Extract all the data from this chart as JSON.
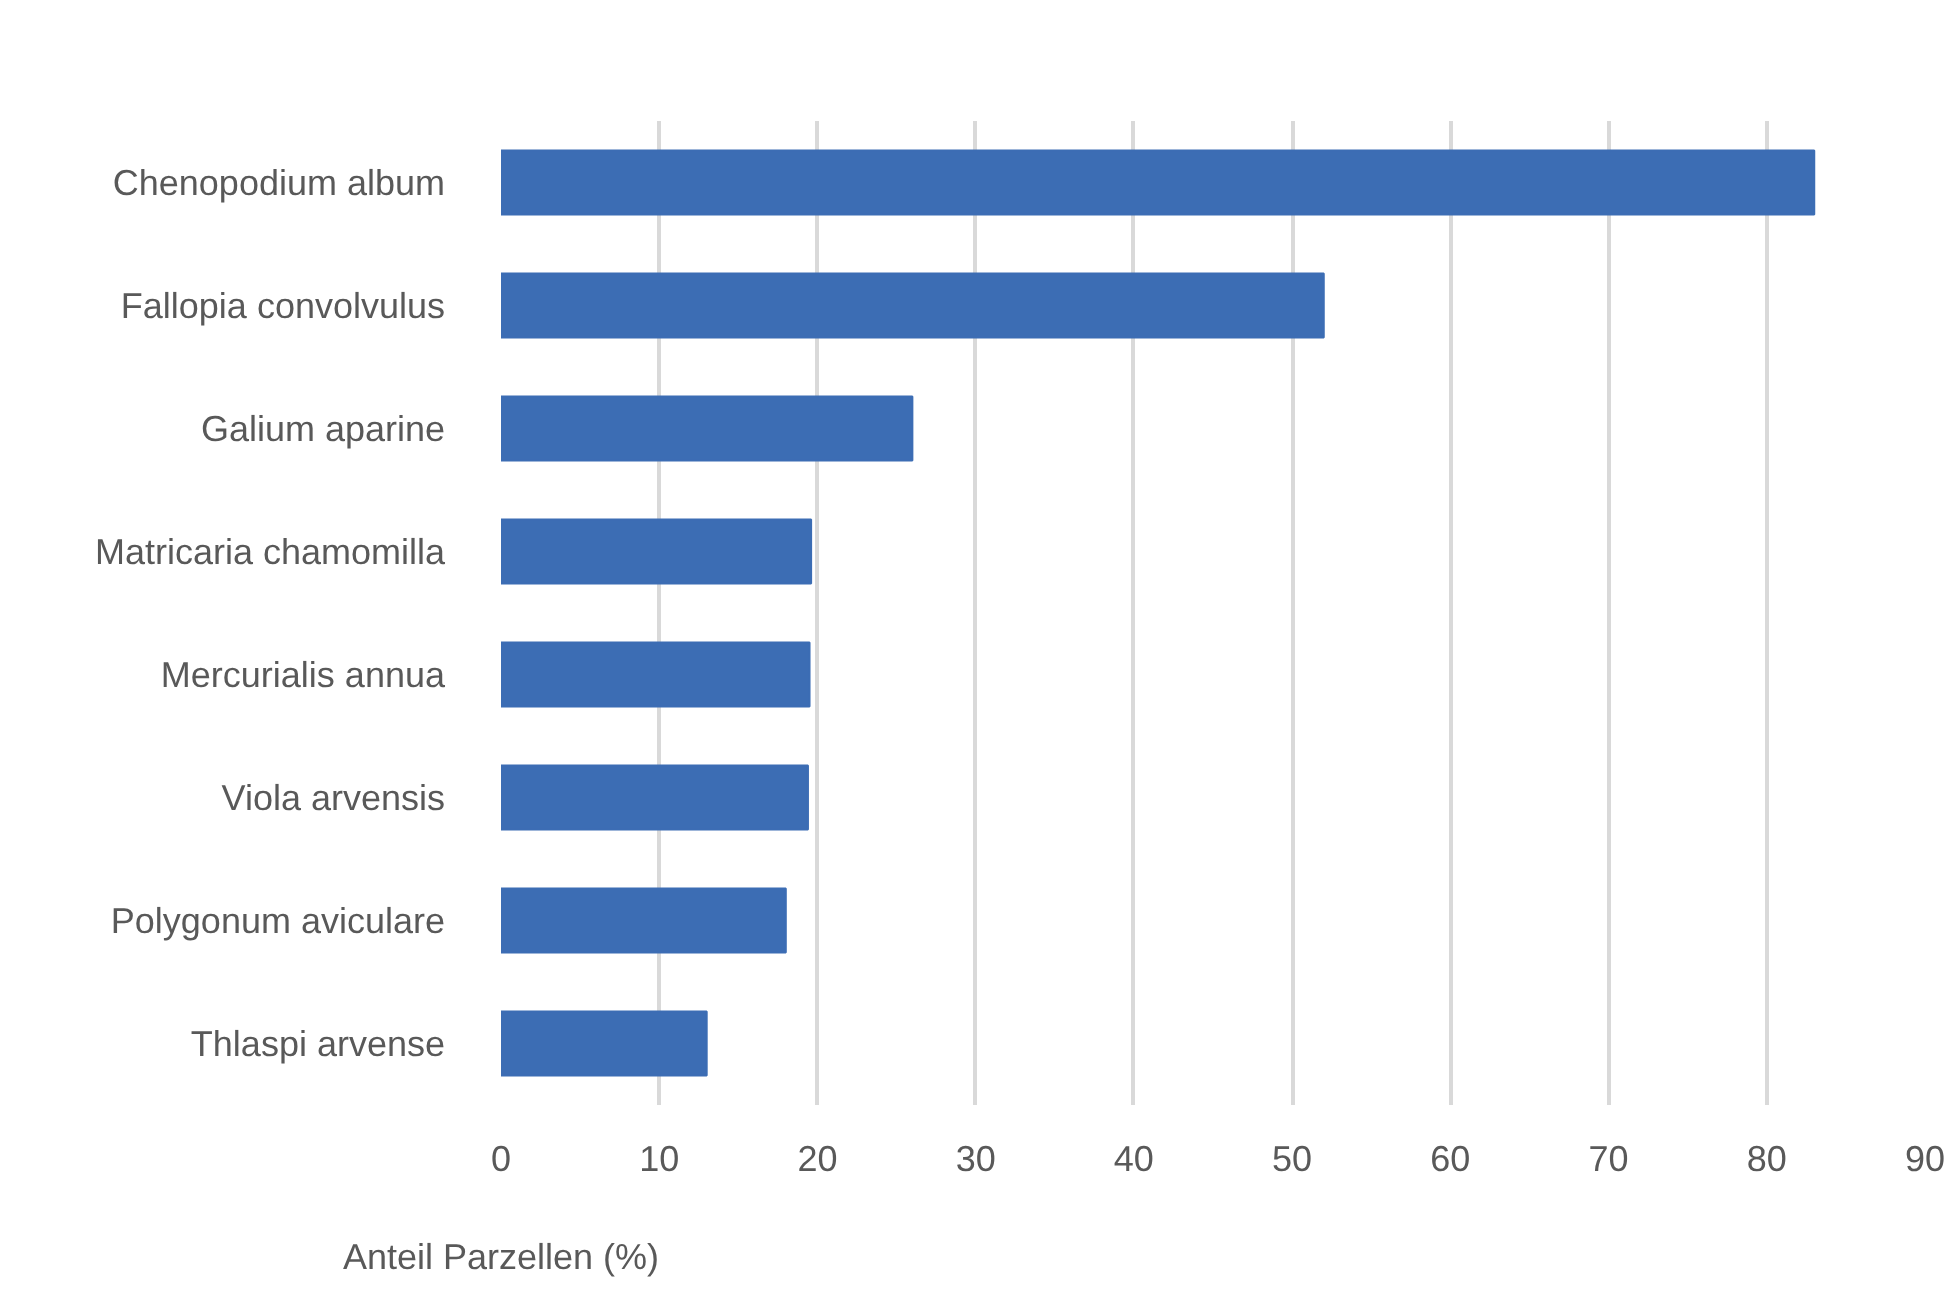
{
  "chart_data": {
    "type": "bar",
    "orientation": "horizontal",
    "xlabel": "Anteil Parzellen (%)",
    "categories": [
      "Chenopodium album",
      "Fallopia convolvulus",
      "Galium aparine",
      "Matricaria chamomilla",
      "Mercurialis annua",
      "Viola arvensis",
      "Polygonum aviculare",
      "Thlaspi arvense"
    ],
    "values": [
      83.0,
      52.0,
      26.0,
      19.6,
      19.5,
      19.4,
      18.0,
      13.0
    ],
    "color": "#3c6db4",
    "xlim": [
      0,
      90
    ],
    "xticks": [
      0,
      10,
      20,
      30,
      40,
      50,
      60,
      70,
      80,
      90
    ],
    "grid": "x"
  }
}
